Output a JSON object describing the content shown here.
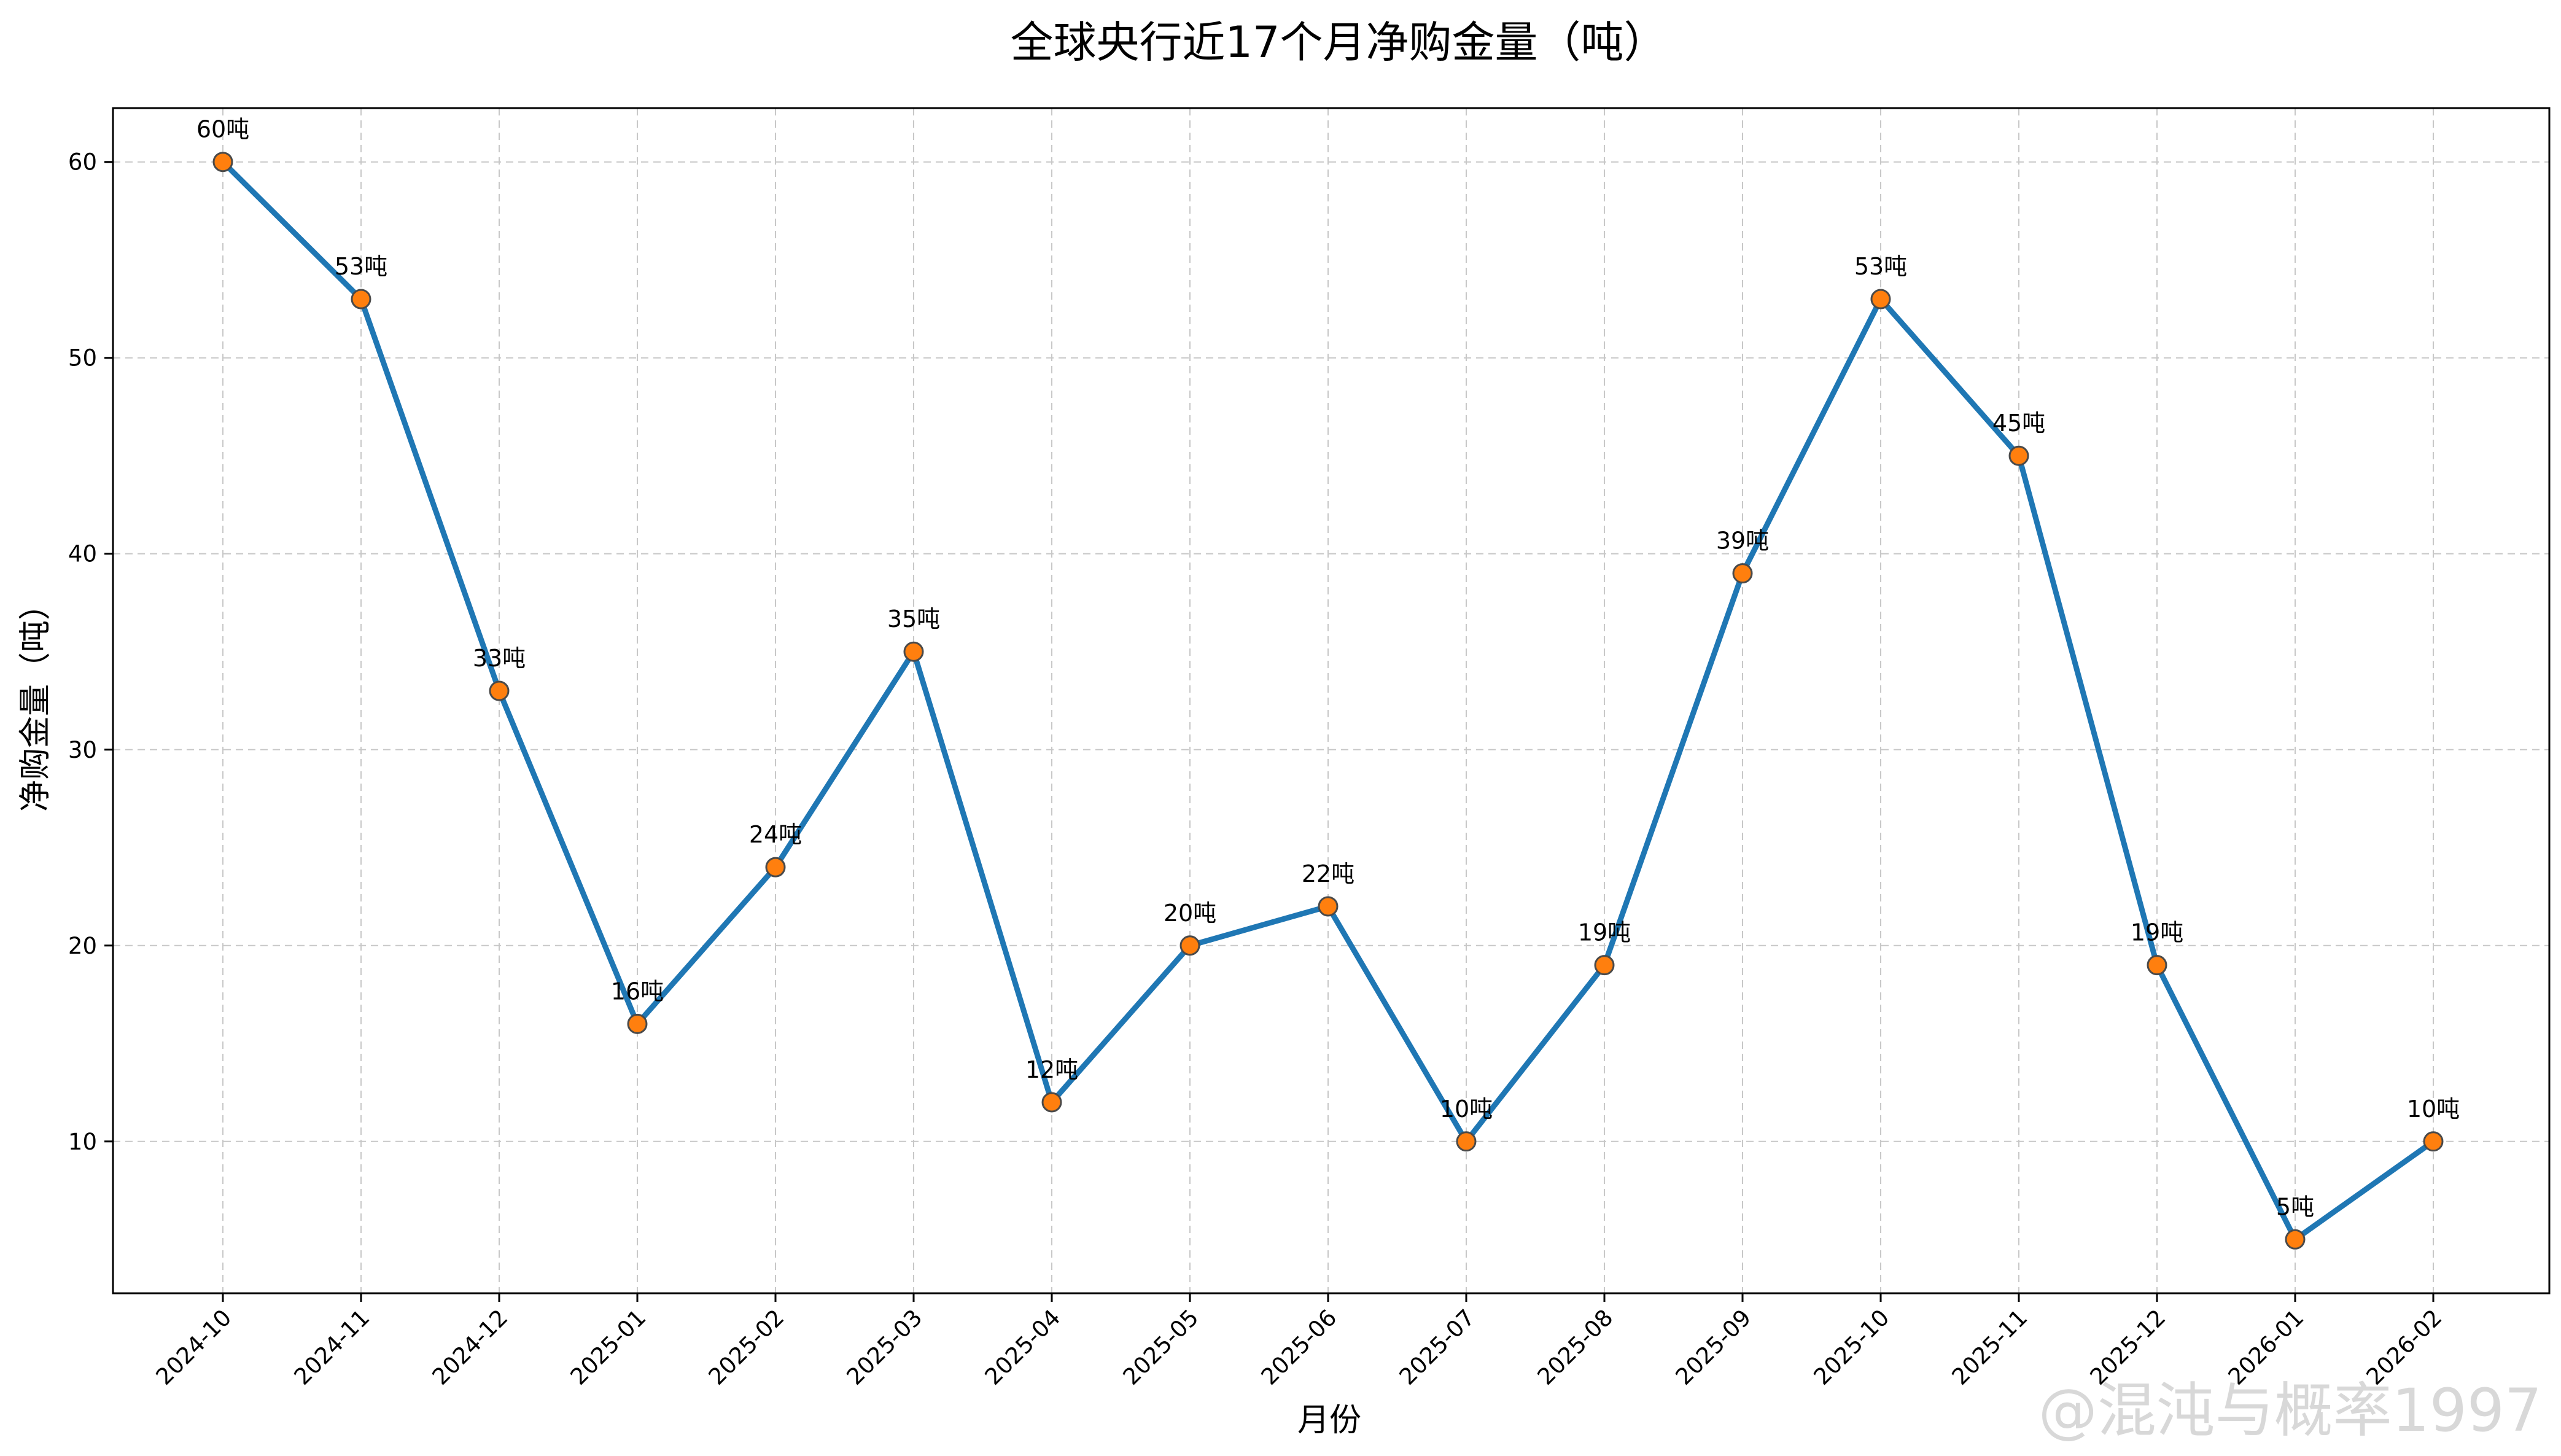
{
  "chart_data": {
    "type": "line",
    "title": "全球央行近17个月净购金量（吨）",
    "xlabel": "月份",
    "ylabel": "净购金量（吨）",
    "categories": [
      "2024-10",
      "2024-11",
      "2024-12",
      "2025-01",
      "2025-02",
      "2025-03",
      "2025-04",
      "2025-05",
      "2025-06",
      "2025-07",
      "2025-08",
      "2025-09",
      "2025-10",
      "2025-11",
      "2025-12",
      "2026-01",
      "2026-02"
    ],
    "series": [
      {
        "values": [
          60,
          53,
          33,
          16,
          24,
          35,
          12,
          20,
          22,
          10,
          19,
          39,
          53,
          45,
          19,
          5,
          10
        ],
        "labels": [
          "60吨",
          "53吨",
          "33吨",
          "16吨",
          "24吨",
          "35吨",
          "12吨",
          "20吨",
          "22吨",
          "10吨",
          "19吨",
          "39吨",
          "53吨",
          "45吨",
          "19吨",
          "5吨",
          "10吨"
        ],
        "line_color": "#1f77b4",
        "marker_color": "#ff7f0e"
      }
    ],
    "yticks": [
      "10",
      "20",
      "30",
      "40",
      "50",
      "60"
    ],
    "ylim": [
      2.25,
      62.75
    ],
    "grid": true,
    "legend": false
  },
  "watermark": "@混沌与概率1997"
}
